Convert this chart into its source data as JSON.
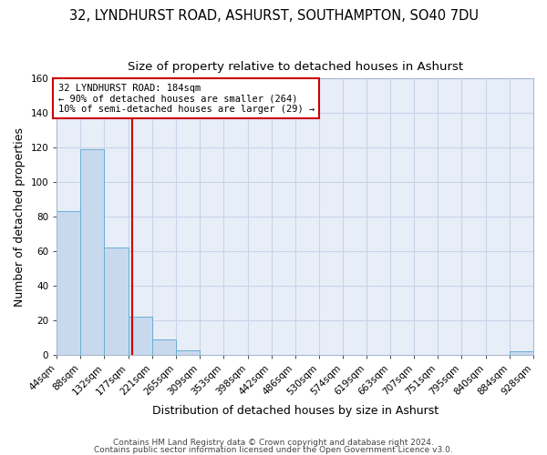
{
  "title": "32, LYNDHURST ROAD, ASHURST, SOUTHAMPTON, SO40 7DU",
  "subtitle": "Size of property relative to detached houses in Ashurst",
  "xlabel": "Distribution of detached houses by size in Ashurst",
  "ylabel": "Number of detached properties",
  "bin_edges": [
    44,
    88,
    132,
    177,
    221,
    265,
    309,
    353,
    398,
    442,
    486,
    530,
    574,
    619,
    663,
    707,
    751,
    795,
    840,
    884,
    928
  ],
  "counts": [
    83,
    119,
    62,
    22,
    9,
    3,
    0,
    0,
    0,
    0,
    0,
    0,
    0,
    0,
    0,
    0,
    0,
    0,
    0,
    2
  ],
  "bar_color": "#c8d9ee",
  "bar_edge_color": "#6aaed6",
  "vline_x": 184,
  "vline_color": "#cc0000",
  "annotation_text": "32 LYNDHURST ROAD: 184sqm\n← 90% of detached houses are smaller (264)\n10% of semi-detached houses are larger (29) →",
  "annotation_box_color": "#ffffff",
  "annotation_box_edge_color": "#cc0000",
  "ylim": [
    0,
    160
  ],
  "yticks": [
    0,
    20,
    40,
    60,
    80,
    100,
    120,
    140,
    160
  ],
  "tick_labels": [
    "44sqm",
    "88sqm",
    "132sqm",
    "177sqm",
    "221sqm",
    "265sqm",
    "309sqm",
    "353sqm",
    "398sqm",
    "442sqm",
    "486sqm",
    "530sqm",
    "574sqm",
    "619sqm",
    "663sqm",
    "707sqm",
    "751sqm",
    "795sqm",
    "840sqm",
    "884sqm",
    "928sqm"
  ],
  "footer1": "Contains HM Land Registry data © Crown copyright and database right 2024.",
  "footer2": "Contains public sector information licensed under the Open Government Licence v3.0.",
  "background_color": "#ffffff",
  "plot_bg_color": "#e8eef8",
  "grid_color": "#c8d4e8",
  "title_fontsize": 10.5,
  "subtitle_fontsize": 9.5,
  "axis_label_fontsize": 9,
  "tick_fontsize": 7.5,
  "annotation_fontsize": 7.5,
  "footer_fontsize": 6.5
}
